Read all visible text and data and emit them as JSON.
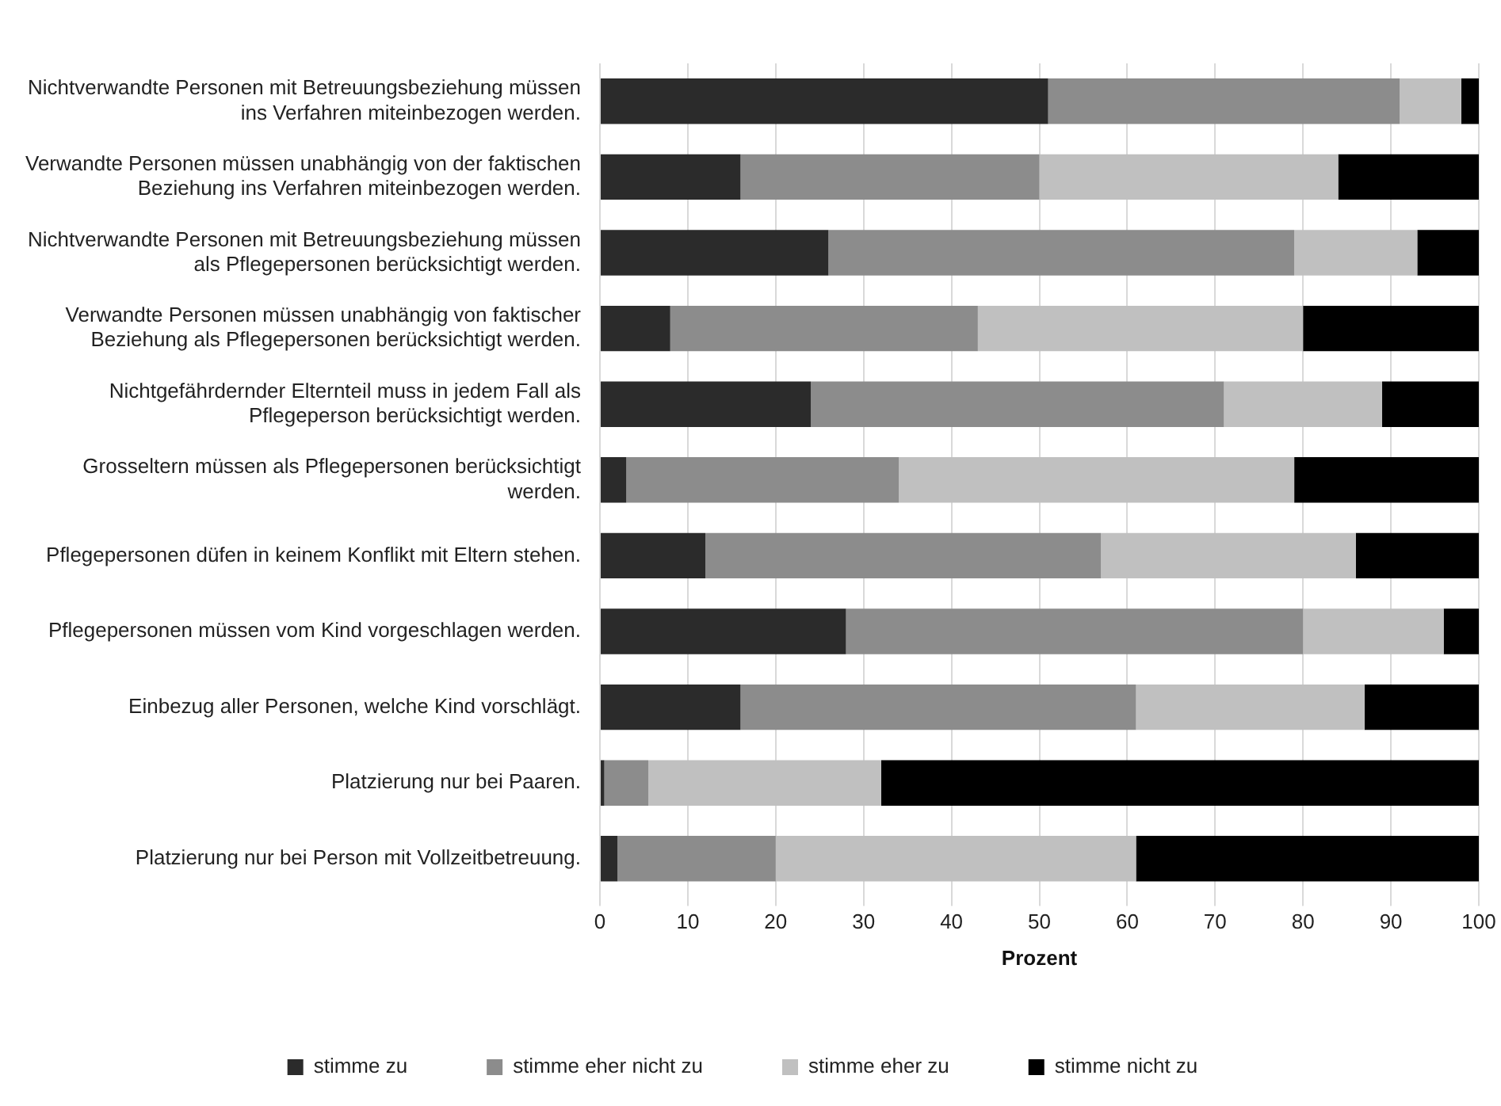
{
  "chart_data": {
    "type": "bar",
    "orientation": "horizontal",
    "stacked": true,
    "categories": [
      "Nichtverwandte Personen mit Betreuungsbeziehung müssen ins Verfahren miteinbezogen werden.",
      "Verwandte Personen müssen unabhängig von der faktischen Beziehung ins Verfahren miteinbezogen werden.",
      "Nichtverwandte Personen mit Betreuungsbeziehung müssen als Pflegepersonen berücksichtigt werden.",
      "Verwandte Personen müssen unabhängig von faktischer Beziehung als Pflegepersonen berücksichtigt werden.",
      "Nichtgefährdernder Elternteil muss in jedem Fall als Pflegeperson berücksichtigt werden.",
      "Grosseltern müssen als Pflegepersonen berücksichtigt werden.",
      "Pflegepersonen düfen in keinem Konflikt mit Eltern stehen.",
      "Pflegepersonen müssen vom Kind vorgeschlagen werden.",
      "Einbezug aller Personen, welche Kind vorschlägt.",
      "Platzierung nur bei Paaren.",
      "Platzierung nur bei Person mit Vollzeitbetreuung."
    ],
    "series": [
      {
        "name": "stimme zu",
        "color": "#2b2b2b",
        "values": [
          51,
          16,
          26,
          8,
          24,
          3,
          12,
          28,
          16,
          0.5,
          2
        ]
      },
      {
        "name": "stimme eher nicht zu",
        "color": "#8c8c8c",
        "values": [
          40,
          34,
          53,
          35,
          47,
          31,
          45,
          52,
          45,
          5,
          18
        ]
      },
      {
        "name": "stimme eher zu",
        "color": "#c0c0c0",
        "values": [
          7,
          34,
          14,
          37,
          18,
          45,
          29,
          16,
          26,
          26.5,
          41
        ]
      },
      {
        "name": "stimme nicht zu",
        "color": "#000000",
        "values": [
          2,
          16,
          7,
          20,
          11,
          21,
          14,
          4,
          13,
          68,
          39
        ]
      }
    ],
    "xlabel": "Prozent",
    "xlim": [
      0,
      100
    ],
    "xticks": [
      0,
      10,
      20,
      30,
      40,
      50,
      60,
      70,
      80,
      90,
      100
    ],
    "grid": "x",
    "legend": "bottom"
  }
}
